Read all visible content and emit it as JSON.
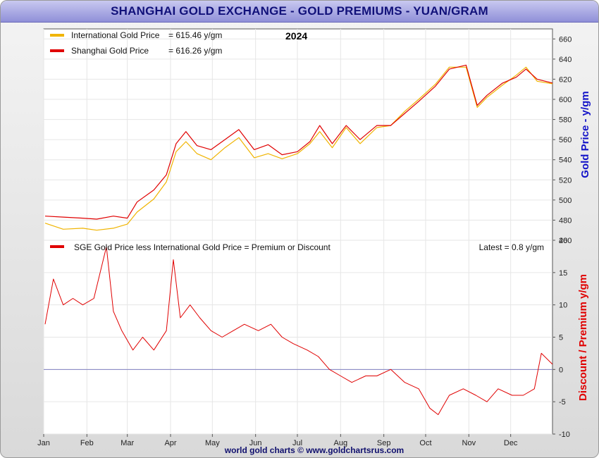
{
  "title": "SHANGHAI GOLD EXCHANGE - GOLD PREMIUMS - YUAN/GRAM",
  "footer": "world gold charts © www.goldchartsrus.com",
  "colors": {
    "international": "#f0b400",
    "shanghai": "#e00000",
    "zero_line": "#8080c0",
    "grid": "#e6e6e6"
  },
  "chart_data": [
    {
      "type": "line",
      "title": "2024",
      "ylabel": "Gold Price - y/gm",
      "ylim": [
        460,
        670
      ],
      "yticks": [
        460,
        480,
        500,
        520,
        540,
        560,
        580,
        600,
        620,
        640,
        660
      ],
      "x_month_labels": [
        "Jan",
        "Feb",
        "Mar",
        "Apr",
        "May",
        "Jun",
        "Jul",
        "Aug",
        "Sep",
        "Oct",
        "Nov",
        "Dec"
      ],
      "x_month_starts": [
        "2024-01-01",
        "2024-02-01",
        "2024-03-01",
        "2024-04-01",
        "2024-05-01",
        "2024-06-01",
        "2024-07-01",
        "2024-08-01",
        "2024-09-01",
        "2024-10-01",
        "2024-11-01",
        "2024-12-01"
      ],
      "x_range": [
        "2024-01-01",
        "2024-12-31"
      ],
      "legend": [
        {
          "label": "International Gold Price",
          "value": "= 615.46 y/gm"
        },
        {
          "label": "Shanghai Gold Price",
          "value": "= 616.26 y/gm"
        }
      ],
      "dates": [
        "2024-01-02",
        "2024-01-15",
        "2024-01-29",
        "2024-02-08",
        "2024-02-20",
        "2024-03-01",
        "2024-03-08",
        "2024-03-20",
        "2024-03-29",
        "2024-04-05",
        "2024-04-12",
        "2024-04-20",
        "2024-04-30",
        "2024-05-10",
        "2024-05-20",
        "2024-05-31",
        "2024-06-10",
        "2024-06-20",
        "2024-07-01",
        "2024-07-10",
        "2024-07-17",
        "2024-07-26",
        "2024-08-05",
        "2024-08-15",
        "2024-08-27",
        "2024-09-06",
        "2024-09-16",
        "2024-09-26",
        "2024-10-08",
        "2024-10-18",
        "2024-10-30",
        "2024-11-07",
        "2024-11-14",
        "2024-11-25",
        "2024-12-05",
        "2024-12-12",
        "2024-12-20",
        "2024-12-31"
      ],
      "series": [
        {
          "name": "International Gold Price",
          "values": [
            477,
            471,
            472,
            470,
            472,
            476,
            488,
            501,
            518,
            548,
            558,
            546,
            540,
            552,
            562,
            542,
            546,
            541,
            546,
            556,
            568,
            552,
            572,
            556,
            572,
            574,
            588,
            600,
            615,
            632,
            632,
            592,
            602,
            614,
            624,
            632,
            618,
            615.46
          ]
        },
        {
          "name": "Shanghai Gold Price",
          "values": [
            484,
            483,
            482,
            481,
            484,
            482,
            498,
            510,
            525,
            556,
            568,
            554,
            550,
            560,
            570,
            550,
            555,
            545,
            548,
            558,
            574,
            556,
            574,
            560,
            574,
            574,
            586,
            598,
            613,
            630,
            634,
            594,
            604,
            616,
            622,
            630,
            620,
            616.26
          ]
        }
      ]
    },
    {
      "type": "line",
      "ylabel": "Discount / Premium y/gm",
      "ylim": [
        -10,
        20
      ],
      "yticks": [
        -10,
        -5,
        0,
        5,
        10,
        15,
        20
      ],
      "legend": [
        {
          "label": "SGE Gold Price less International Gold Price = Premium or Discount"
        }
      ],
      "latest": "Latest = 0.8 y/gm",
      "dates": [
        "2024-01-02",
        "2024-01-08",
        "2024-01-15",
        "2024-01-22",
        "2024-01-29",
        "2024-02-06",
        "2024-02-15",
        "2024-02-20",
        "2024-02-26",
        "2024-03-05",
        "2024-03-12",
        "2024-03-20",
        "2024-03-29",
        "2024-04-03",
        "2024-04-08",
        "2024-04-15",
        "2024-04-22",
        "2024-04-30",
        "2024-05-08",
        "2024-05-16",
        "2024-05-24",
        "2024-06-03",
        "2024-06-12",
        "2024-06-20",
        "2024-06-28",
        "2024-07-08",
        "2024-07-16",
        "2024-07-24",
        "2024-08-01",
        "2024-08-09",
        "2024-08-19",
        "2024-08-27",
        "2024-09-06",
        "2024-09-16",
        "2024-09-26",
        "2024-10-04",
        "2024-10-10",
        "2024-10-18",
        "2024-10-28",
        "2024-11-06",
        "2024-11-14",
        "2024-11-22",
        "2024-12-02",
        "2024-12-10",
        "2024-12-18",
        "2024-12-23",
        "2024-12-31"
      ],
      "series": [
        {
          "name": "Premium or Discount",
          "values": [
            7,
            14,
            10,
            11,
            10,
            11,
            19,
            9,
            6,
            3,
            5,
            3,
            6,
            17,
            8,
            10,
            8,
            6,
            5,
            6,
            7,
            6,
            7,
            5,
            4,
            3,
            2,
            0,
            -1,
            -2,
            -1,
            -1,
            0,
            -2,
            -3,
            -6,
            -7,
            -4,
            -3,
            -4,
            -5,
            -3,
            -4,
            -4,
            -3,
            2.5,
            0.8
          ]
        }
      ]
    }
  ]
}
